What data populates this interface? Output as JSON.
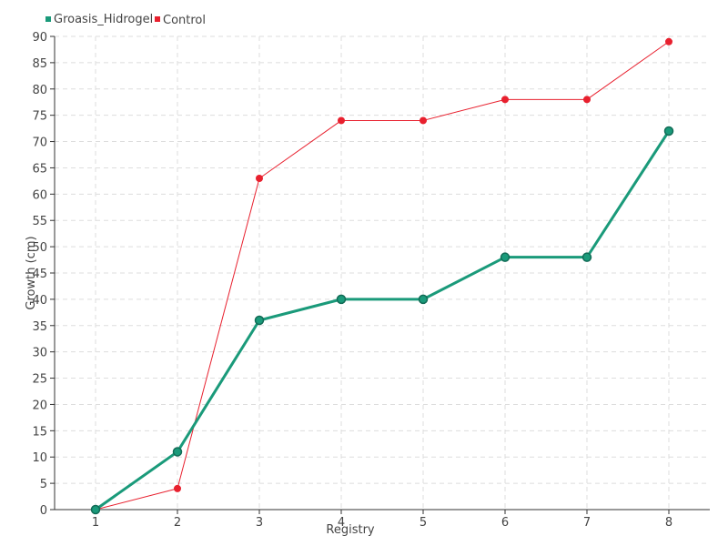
{
  "chart_data": {
    "type": "line",
    "title": "",
    "xlabel": "Registry",
    "ylabel": "Growth (cm)",
    "x": [
      1,
      2,
      3,
      4,
      5,
      6,
      7,
      8
    ],
    "x_tick_labels": [
      "1",
      "2",
      "3",
      "4",
      "5",
      "6",
      "7",
      "8"
    ],
    "ylim": [
      0,
      90
    ],
    "y_tick_step": 5,
    "grid": true,
    "legend_position": "top-left",
    "series": [
      {
        "name": "Groasis_Hidrogel",
        "color": "#1a9a7a",
        "values": [
          0,
          11,
          36,
          40,
          40,
          48,
          48,
          72
        ]
      },
      {
        "name": "Control",
        "color": "#e8202e",
        "values": [
          0,
          4,
          63,
          74,
          74,
          78,
          78,
          89
        ]
      }
    ]
  }
}
